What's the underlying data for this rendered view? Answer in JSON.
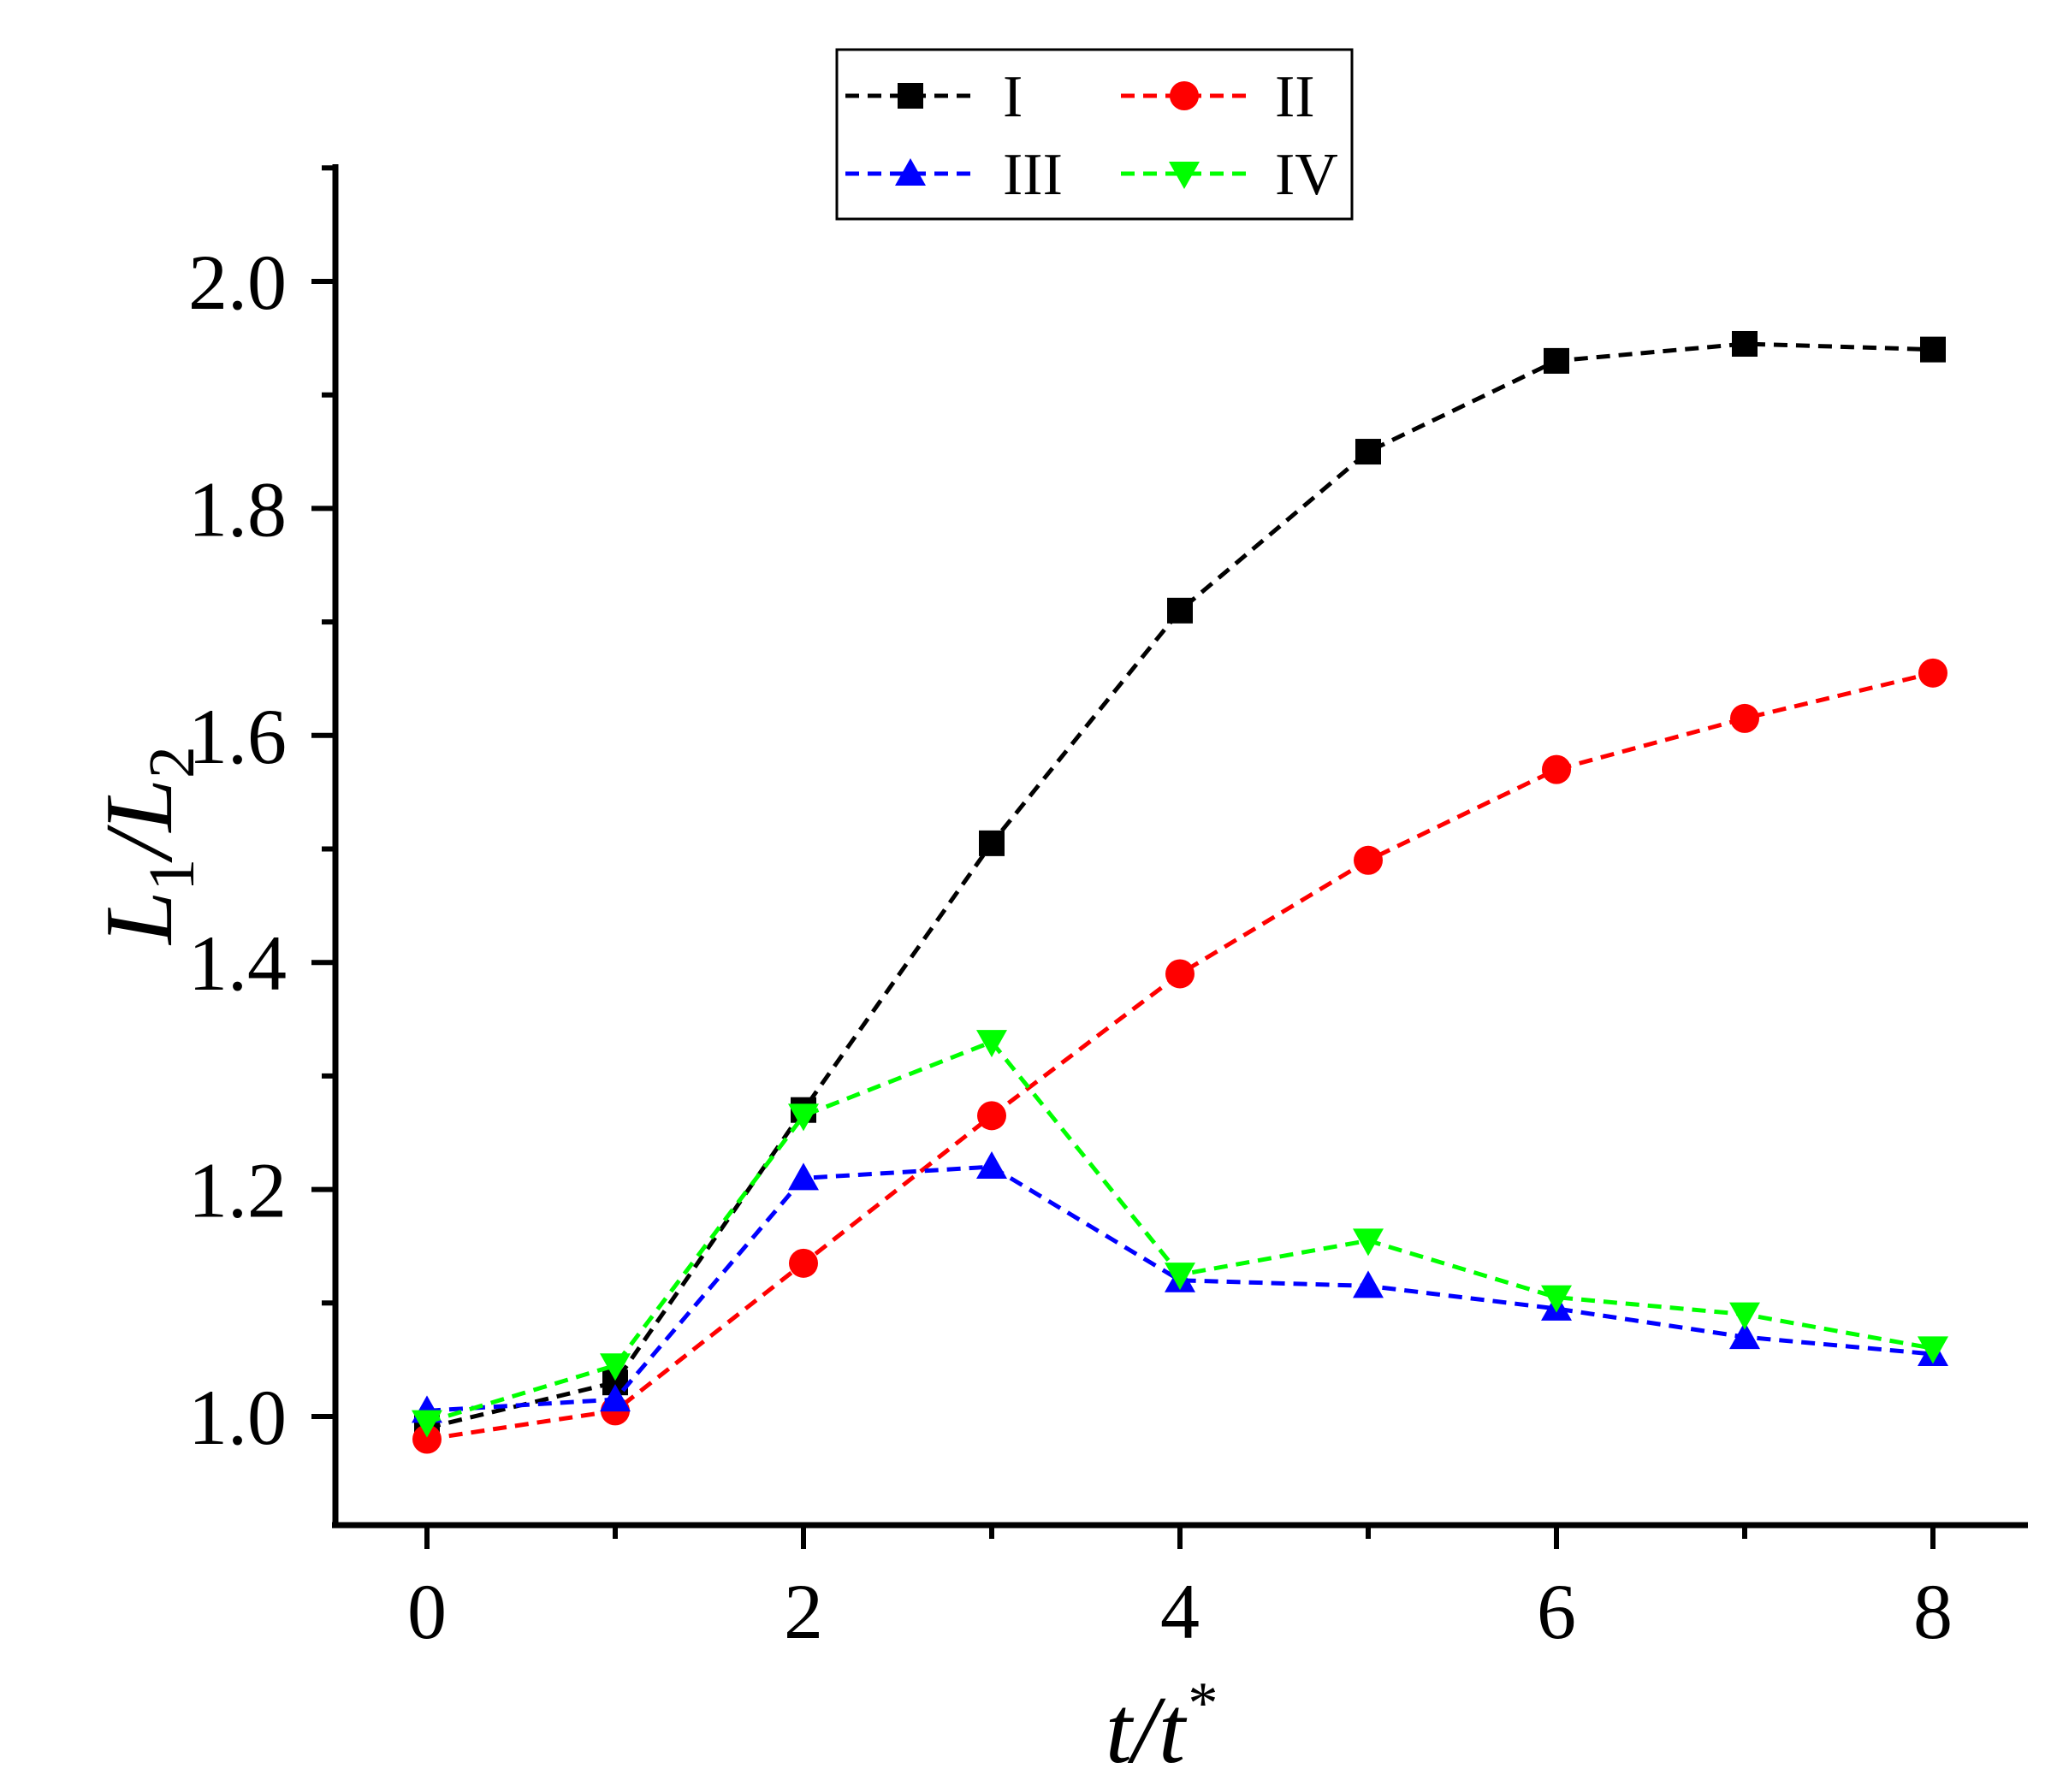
{
  "chart_data": {
    "type": "line",
    "title": "",
    "xlabel": {
      "main": "t/t",
      "sup": "*"
    },
    "ylabel": {
      "l1": "L",
      "s1": "1",
      "sep": "/",
      "l2": "L",
      "s2": "2"
    },
    "x": [
      0,
      1,
      2,
      3,
      4,
      5,
      6,
      7,
      8
    ],
    "xlim": [
      -0.5,
      8.5
    ],
    "ylim": [
      0.9,
      2.1
    ],
    "xticks": [
      "0",
      "2",
      "4",
      "6",
      "8"
    ],
    "xtick_values": [
      0,
      2,
      4,
      6,
      8
    ],
    "yticks": [
      "1.0",
      "1.2",
      "1.4",
      "1.6",
      "1.8",
      "2.0"
    ],
    "ytick_values": [
      1.0,
      1.2,
      1.4,
      1.6,
      1.8,
      2.0
    ],
    "legend_position": "top-center",
    "series": [
      {
        "name": "I",
        "color": "#000000",
        "marker": "square",
        "values": [
          0.99,
          1.03,
          1.27,
          1.505,
          1.71,
          1.85,
          1.93,
          1.945,
          1.94
        ]
      },
      {
        "name": "II",
        "color": "#ff0000",
        "marker": "circle",
        "values": [
          0.98,
          1.005,
          1.135,
          1.265,
          1.39,
          1.49,
          1.57,
          1.615,
          1.655
        ]
      },
      {
        "name": "III",
        "color": "#0000ff",
        "marker": "triangle-up",
        "values": [
          1.005,
          1.015,
          1.21,
          1.22,
          1.12,
          1.115,
          1.095,
          1.07,
          1.055
        ]
      },
      {
        "name": "IV",
        "color": "#00ff00",
        "marker": "triangle-down",
        "values": [
          0.995,
          1.045,
          1.265,
          1.33,
          1.125,
          1.155,
          1.105,
          1.09,
          1.06
        ]
      }
    ]
  }
}
